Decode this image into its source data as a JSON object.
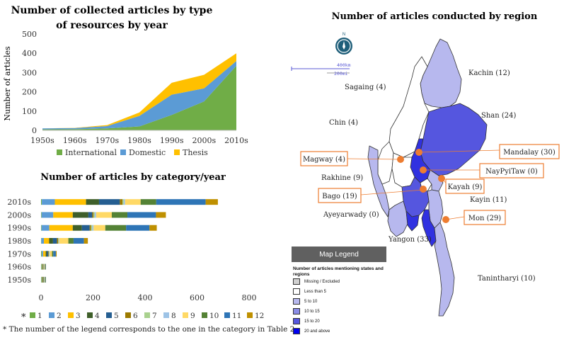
{
  "chart_data": [
    {
      "type": "area",
      "title": "Number of collected articles by type of resources by year",
      "title_line1": "Number of collected articles by type",
      "title_line2": "of resources by year",
      "ylabel": "Number of articles",
      "xlabel": "",
      "x": [
        "1950s",
        "1960s",
        "1970s",
        "1980s",
        "1990s",
        "2000s",
        "2010s"
      ],
      "yticks": [
        "0",
        "100",
        "200",
        "300",
        "400",
        "500"
      ],
      "ylim": [
        0,
        500
      ],
      "stacked": true,
      "legend_position": "bottom",
      "series": [
        {
          "name": "International",
          "color": "#70ad47",
          "values": [
            5,
            6,
            10,
            20,
            80,
            150,
            335
          ]
        },
        {
          "name": "Domestic",
          "color": "#5b9bd5",
          "values": [
            5,
            6,
            12,
            55,
            105,
            68,
            25
          ]
        },
        {
          "name": "Thesis",
          "color": "#ffc000",
          "values": [
            0,
            1,
            5,
            18,
            62,
            70,
            40
          ]
        }
      ]
    },
    {
      "type": "bar",
      "orientation": "horizontal",
      "stacked": true,
      "title": "Number of articles by category/year",
      "categories": [
        "2010s",
        "2000s",
        "1990s",
        "1980s",
        "1970s",
        "1960s",
        "1950s"
      ],
      "xticks": [
        "0",
        "200",
        "400",
        "600",
        "800"
      ],
      "xlim": [
        0,
        800
      ],
      "legend_position": "bottom",
      "legend_prefix": "*",
      "series": [
        {
          "name": "1",
          "color": "#70ad47",
          "values": [
            3,
            2,
            2,
            1,
            3,
            2,
            2
          ]
        },
        {
          "name": "2",
          "color": "#5b9bd5",
          "values": [
            50,
            45,
            30,
            10,
            5,
            2,
            2
          ]
        },
        {
          "name": "3",
          "color": "#ffc000",
          "values": [
            120,
            75,
            90,
            20,
            10,
            2,
            2
          ]
        },
        {
          "name": "4",
          "color": "#3f5f2a",
          "values": [
            50,
            60,
            35,
            15,
            5,
            2,
            3
          ]
        },
        {
          "name": "5",
          "color": "#255e91",
          "values": [
            80,
            15,
            30,
            15,
            5,
            1,
            1
          ]
        },
        {
          "name": "6",
          "color": "#9c7a00",
          "values": [
            10,
            5,
            5,
            5,
            2,
            1,
            1
          ]
        },
        {
          "name": "7",
          "color": "#a9d18e",
          "values": [
            5,
            5,
            5,
            2,
            2,
            1,
            1
          ]
        },
        {
          "name": "8",
          "color": "#9dc3e6",
          "values": [
            5,
            5,
            5,
            2,
            2,
            1,
            1
          ]
        },
        {
          "name": "9",
          "color": "#ffd966",
          "values": [
            60,
            60,
            45,
            35,
            8,
            2,
            1
          ]
        },
        {
          "name": "10",
          "color": "#548235",
          "values": [
            60,
            60,
            80,
            20,
            5,
            2,
            2
          ]
        },
        {
          "name": "11",
          "color": "#2e75b6",
          "values": [
            190,
            110,
            90,
            40,
            10,
            2,
            2
          ]
        },
        {
          "name": "12",
          "color": "#bf9000",
          "values": [
            47,
            38,
            28,
            15,
            3,
            1,
            1
          ]
        }
      ]
    }
  ],
  "footnote": "* The number of the legend corresponds to the one in the category in Table 2.",
  "map": {
    "title": "Number of articles conducted by region",
    "compass_label": "N",
    "scale_km": "400km",
    "scale_mi": "200mi",
    "colors": {
      "missing": "#ffffff",
      "lt5": "#ffffff",
      "r5_10": "#b7b8ee",
      "r10_15": "#8a8ce6",
      "r15_20": "#5556df",
      "r20plus": "#3031e0",
      "accent": "#ed7d31",
      "compass": "#1f5f7a"
    },
    "regions": [
      {
        "key": "kachin",
        "label": "Kachin (12)"
      },
      {
        "key": "sagaing",
        "label": "Sagaing (4)"
      },
      {
        "key": "shan",
        "label": "Shan (24)"
      },
      {
        "key": "chin",
        "label": "Chin (4)"
      },
      {
        "key": "mandalay",
        "label": "Mandalay (30)",
        "boxed": true
      },
      {
        "key": "magway",
        "label": "Magway (4)",
        "boxed": true
      },
      {
        "key": "naypyitaw",
        "label": "NayPyiTaw (0)",
        "boxed": true
      },
      {
        "key": "rakhine",
        "label": "Rakhine (9)"
      },
      {
        "key": "kayah",
        "label": "Kayah (9)",
        "boxed": true
      },
      {
        "key": "bago",
        "label": "Bago (19)",
        "boxed": true
      },
      {
        "key": "kayin",
        "label": "Kayin (11)"
      },
      {
        "key": "ayeyarwady",
        "label": "Ayeyarwady (0)"
      },
      {
        "key": "mon",
        "label": "Mon (29)",
        "boxed": true
      },
      {
        "key": "yangon",
        "label": "Yangon (33)"
      },
      {
        "key": "tanintharyi",
        "label": "Tanintharyi (10)"
      }
    ],
    "legend": {
      "title": "Map Legend",
      "subtitle": "Number of articles mentioning states and regions",
      "items": [
        {
          "label": "Missing / Excluded",
          "color": "#d0d0d0"
        },
        {
          "label": "Less than 5",
          "color": "#ffffff"
        },
        {
          "label": "5 to 10",
          "color": "#b7b8ee"
        },
        {
          "label": "10 to 15",
          "color": "#8a8ce6"
        },
        {
          "label": "15 to 20",
          "color": "#5556df"
        },
        {
          "label": "20 and above",
          "color": "#0000ee"
        }
      ]
    }
  }
}
